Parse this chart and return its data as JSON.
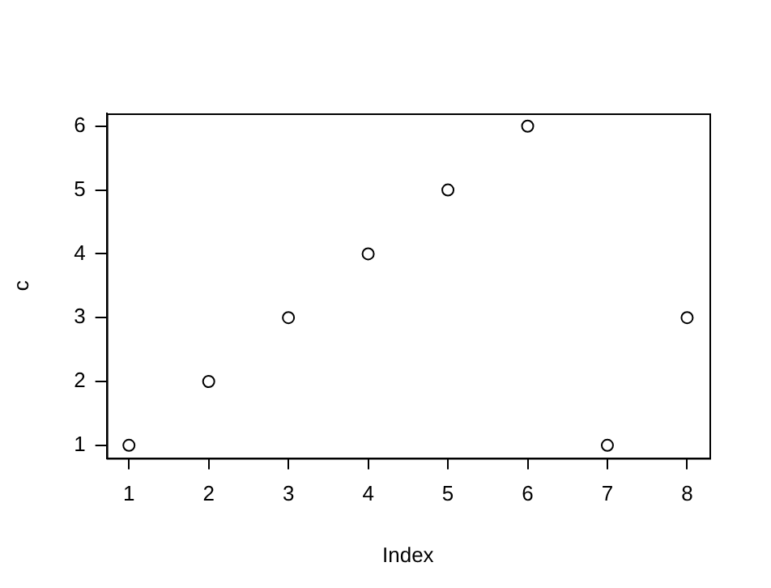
{
  "chart_data": {
    "type": "scatter",
    "xlabel": "Index",
    "ylabel": "c",
    "x": [
      1,
      2,
      3,
      4,
      5,
      6,
      7,
      8
    ],
    "values": [
      1,
      2,
      3,
      4,
      5,
      6,
      1,
      3
    ],
    "color": "#000000",
    "marker": "circle",
    "grid": false,
    "legend": false,
    "xlim": [
      0.72,
      8.28
    ],
    "ylim": [
      0.8,
      6.2
    ],
    "xticks": [
      1,
      2,
      3,
      4,
      5,
      6,
      7,
      8
    ],
    "yticks": [
      1,
      2,
      3,
      4,
      5,
      6
    ]
  }
}
